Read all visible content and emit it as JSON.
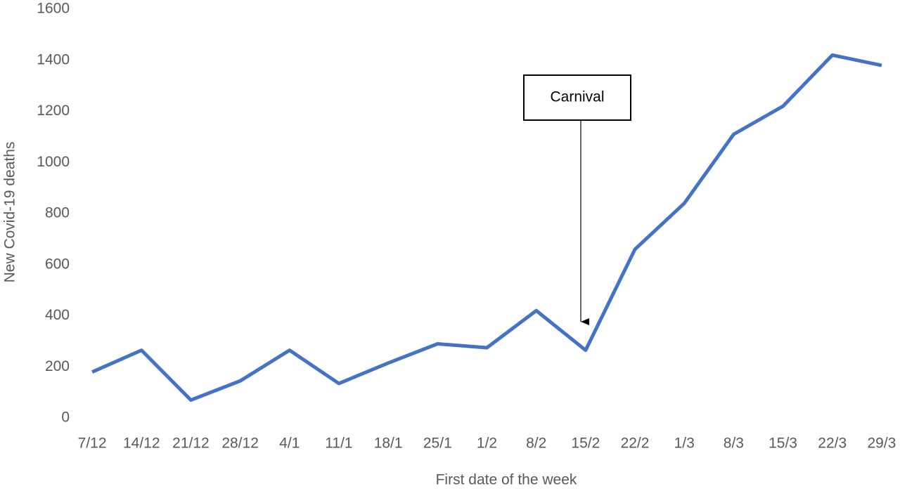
{
  "chart_data": {
    "type": "line",
    "x_label": "First date of the week",
    "y_label": "New Covid-19 deaths",
    "annotation": "Carnival",
    "categories": [
      "7/12",
      "14/12",
      "21/12",
      "28/12",
      "4/1",
      "11/1",
      "18/1",
      "25/1",
      "1/2",
      "8/2",
      "15/2",
      "22/2",
      "1/3",
      "8/3",
      "15/3",
      "22/3",
      "29/3"
    ],
    "values": [
      180,
      265,
      70,
      145,
      265,
      135,
      215,
      290,
      275,
      420,
      265,
      660,
      840,
      1110,
      1220,
      1420,
      1380
    ],
    "color": "#4472c4",
    "ylim": [
      0,
      1600
    ],
    "yticks": [
      0,
      200,
      400,
      600,
      800,
      1000,
      1200,
      1400,
      1600
    ],
    "grid": false
  }
}
